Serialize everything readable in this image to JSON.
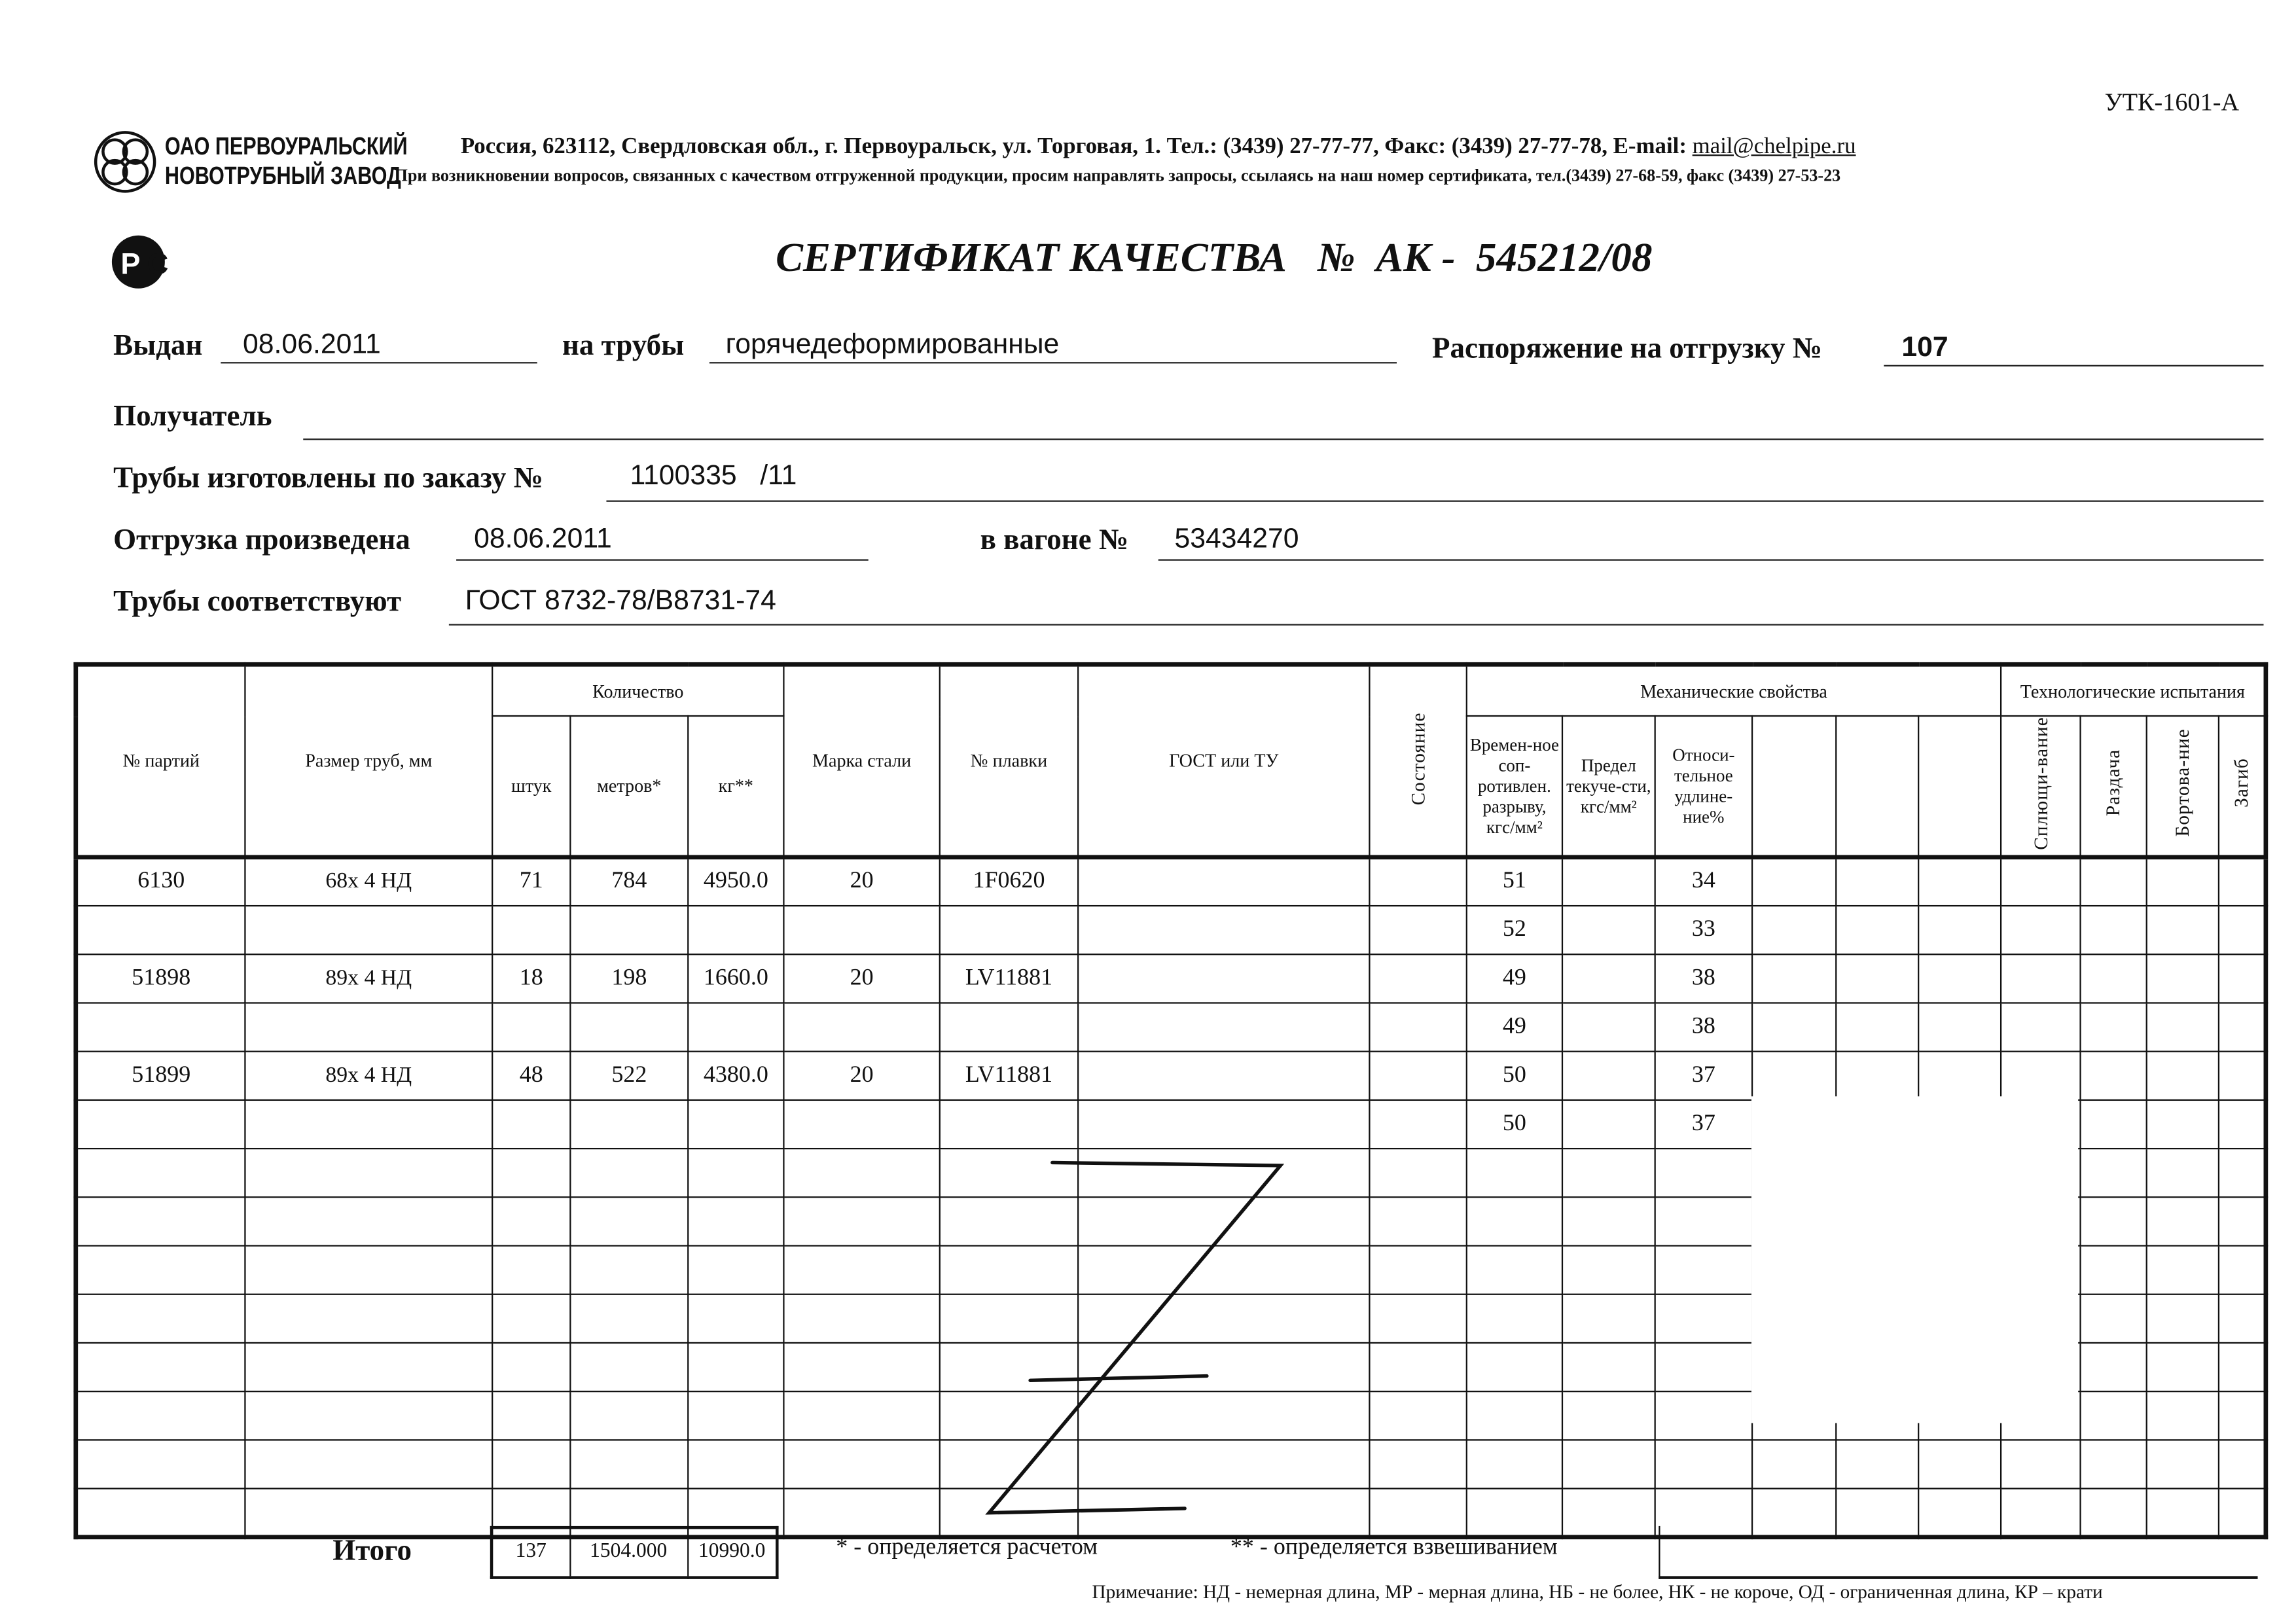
{
  "form_code": "УТК-1601-А",
  "company": {
    "line1": "ОАО ПЕРВОУРАЛЬСКИЙ",
    "line2": "НОВОТРУБНЫЙ ЗАВОД"
  },
  "address": "Россия, 623112, Свердловская обл., г. Первоуральск, ул. Торговая, 1. Тел.: (3439) 27-77-77, Факс: (3439) 27-77-78,",
  "email_label": "E-mail:",
  "email": "mail@chelpipe.ru",
  "contact_note": "При возникновении вопросов, связанных с качеством отгруженной продукции, просим направлять запросы, ссылаясь на наш номер сертификата, тел.(3439) 27-68-59, факс (3439) 27-53-23",
  "cert_logo": "РСТ",
  "title": "СЕРТИФИКАТ КАЧЕСТВА   №  АК -  545212/08",
  "fields": {
    "issued_label": "Выдан",
    "issued": "08.06.2011",
    "pipes_label": "на трубы",
    "pipes": "горячедеформированные",
    "order_label": "Распоряжение на отгрузку №",
    "order": "107",
    "recipient_label": "Получатель",
    "recipient": "",
    "made_label": "Трубы изготовлены по заказу №",
    "made": "1100335   /11",
    "shipped_label": "Отгрузка произведена",
    "shipped": "08.06.2011",
    "wagon_label": "в вагоне №",
    "wagon": "53434270",
    "conform_label": "Трубы соответствуют",
    "conform": "ГОСТ 8732-78/В8731-74"
  },
  "table": {
    "h_batch": "№ партий",
    "h_size": "Размер труб, мм",
    "h_qty": "Количество",
    "h_pcs": "штук",
    "h_m": "метров*",
    "h_kg": "кг**",
    "h_grade": "Марка стали",
    "h_heat": "№ плавки",
    "h_gost": "ГОСТ или ТУ",
    "h_state": "Состояние",
    "h_mech": "Механические свойства",
    "h_tensile": "Времен-ное соп-ротивлен. разрыву, кгс/мм²",
    "h_yield": "Предел текуче-сти, кгс/мм²",
    "h_elong": "Относи-тельное удлине-ние%",
    "h_tech": "Технологические испытания",
    "h_flat": "Сплющи-вание",
    "h_expand": "Раздача",
    "h_flange": "Бортова-ние",
    "h_bend": "Загиб",
    "rows": [
      [
        "6130",
        "68х 4 НД",
        "71",
        "784",
        "4950.0",
        "20",
        "1F0620",
        "",
        "",
        "51",
        "",
        "34",
        "",
        "",
        "",
        "",
        "",
        "",
        ""
      ],
      [
        "",
        "",
        "",
        "",
        "",
        "",
        "",
        "",
        "",
        "52",
        "",
        "33",
        "",
        "",
        "",
        "",
        "",
        "",
        ""
      ],
      [
        "51898",
        "89х 4 НД",
        "18",
        "198",
        "1660.0",
        "20",
        "LV11881",
        "",
        "",
        "49",
        "",
        "38",
        "",
        "",
        "",
        "",
        "",
        "",
        ""
      ],
      [
        "",
        "",
        "",
        "",
        "",
        "",
        "",
        "",
        "",
        "49",
        "",
        "38",
        "",
        "",
        "",
        "",
        "",
        "",
        ""
      ],
      [
        "51899",
        "89х 4 НД",
        "48",
        "522",
        "4380.0",
        "20",
        "LV11881",
        "",
        "",
        "50",
        "",
        "37",
        "",
        "",
        "",
        "",
        "",
        "",
        ""
      ],
      [
        "",
        "",
        "",
        "",
        "",
        "",
        "",
        "",
        "",
        "50",
        "",
        "37",
        "",
        "",
        "",
        "",
        "",
        "",
        ""
      ],
      [
        "",
        "",
        "",
        "",
        "",
        "",
        "",
        "",
        "",
        "",
        "",
        "",
        "",
        "",
        "",
        "",
        "",
        "",
        ""
      ],
      [
        "",
        "",
        "",
        "",
        "",
        "",
        "",
        "",
        "",
        "",
        "",
        "",
        "",
        "",
        "",
        "",
        "",
        "",
        ""
      ],
      [
        "",
        "",
        "",
        "",
        "",
        "",
        "",
        "",
        "",
        "",
        "",
        "",
        "",
        "",
        "",
        "",
        "",
        "",
        ""
      ],
      [
        "",
        "",
        "",
        "",
        "",
        "",
        "",
        "",
        "",
        "",
        "",
        "",
        "",
        "",
        "",
        "",
        "",
        "",
        ""
      ],
      [
        "",
        "",
        "",
        "",
        "",
        "",
        "",
        "",
        "",
        "",
        "",
        "",
        "",
        "",
        "",
        "",
        "",
        "",
        ""
      ],
      [
        "",
        "",
        "",
        "",
        "",
        "",
        "",
        "",
        "",
        "",
        "",
        "",
        "",
        "",
        "",
        "",
        "",
        "",
        ""
      ],
      [
        "",
        "",
        "",
        "",
        "",
        "",
        "",
        "",
        "",
        "",
        "",
        "",
        "",
        "",
        "",
        "",
        "",
        "",
        ""
      ],
      [
        "",
        "",
        "",
        "",
        "",
        "",
        "",
        "",
        "",
        "",
        "",
        "",
        "",
        "",
        "",
        "",
        "",
        "",
        ""
      ]
    ]
  },
  "total": {
    "label": "Итого",
    "pcs": "137",
    "m": "1504.000",
    "kg": "10990.0"
  },
  "footnote1": "* - определяется расчетом",
  "footnote2": "** - определяется взвешиванием",
  "note": "Примечание: НД - немерная длина, МР - мерная длина, НБ - не более, НК - не короче, ОД - ограниченная длина, КР – крати"
}
